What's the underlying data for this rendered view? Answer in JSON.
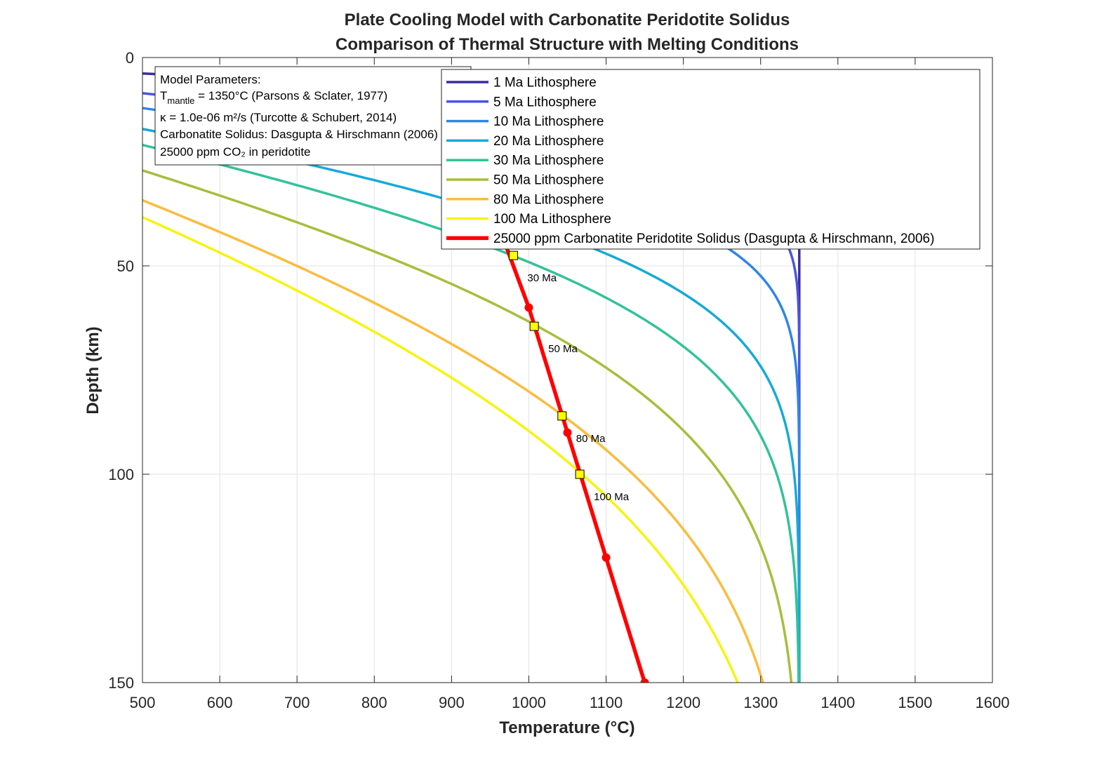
{
  "chart_data": {
    "type": "line",
    "title": [
      "Plate Cooling Model with Carbonatite Peridotite Solidus",
      "Comparison of Thermal Structure with Melting Conditions"
    ],
    "xlabel": "Temperature (°C)",
    "ylabel": "Depth (km)",
    "xlim": [
      500,
      1600
    ],
    "ylim": [
      0,
      150
    ],
    "y_reversed": true,
    "xticks": [
      500,
      600,
      700,
      800,
      900,
      1000,
      1100,
      1200,
      1300,
      1400,
      1500,
      1600
    ],
    "yticks": [
      0,
      50,
      100,
      150
    ],
    "grid": true,
    "legend_position": "top-right",
    "mantle_temperature": 1350,
    "series": [
      {
        "name": "1 Ma Lithosphere",
        "age_ma": 1,
        "color": "#3b2c9c"
      },
      {
        "name": "5 Ma Lithosphere",
        "age_ma": 5,
        "color": "#4a55e0"
      },
      {
        "name": "10 Ma Lithosphere",
        "age_ma": 10,
        "color": "#2f86e6"
      },
      {
        "name": "20 Ma Lithosphere",
        "age_ma": 20,
        "color": "#17aad6"
      },
      {
        "name": "30 Ma Lithosphere",
        "age_ma": 30,
        "color": "#33c29a"
      },
      {
        "name": "50 Ma Lithosphere",
        "age_ma": 50,
        "color": "#a9bd3c"
      },
      {
        "name": "80 Ma Lithosphere",
        "age_ma": 80,
        "color": "#fbbc3d"
      },
      {
        "name": "100 Ma Lithosphere",
        "age_ma": 100,
        "color": "#f6f40f"
      }
    ],
    "solidus": {
      "name": "25000 ppm Carbonatite Peridotite Solidus (Dasgupta & Hirschmann, 2006)",
      "color": "#ff0000",
      "points": [
        {
          "x": 960,
          "y": 40
        },
        {
          "x": 1000,
          "y": 60
        },
        {
          "x": 1050,
          "y": 90
        },
        {
          "x": 1100,
          "y": 120
        },
        {
          "x": 1150,
          "y": 150
        }
      ]
    },
    "intersections": [
      {
        "label": "30 Ma",
        "x": 980,
        "y": 47.5
      },
      {
        "label": "50 Ma",
        "x": 1007,
        "y": 64.5
      },
      {
        "label": "80 Ma",
        "x": 1043,
        "y": 86
      },
      {
        "label": "100 Ma",
        "x": 1066,
        "y": 100
      }
    ],
    "annotation": {
      "heading": "Model Parameters:",
      "tmantle_symbol": "T",
      "tmantle_subscript": "mantle",
      "tmantle_text": " = 1350°C (Parsons & Sclater, 1977)",
      "kappa": "κ = 1.0e-06 m²/s (Turcotte & Schubert, 2014)",
      "solidus_ref": "Carbonatite Solidus: Dasgupta & Hirschmann (2006)",
      "co2": "25000 ppm CO₂ in peridotite"
    }
  }
}
